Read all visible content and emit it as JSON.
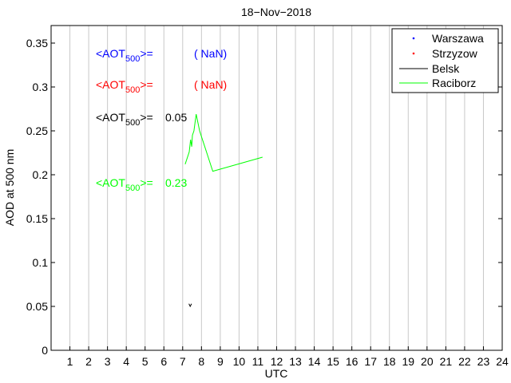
{
  "chart_data": {
    "type": "line",
    "title": "18−Nov−2018",
    "xlabel": "UTC",
    "ylabel": "AOD at 500 nm",
    "xlim": [
      0,
      24
    ],
    "ylim": [
      0,
      0.37
    ],
    "x_ticks": [
      1,
      2,
      3,
      4,
      5,
      6,
      7,
      8,
      9,
      10,
      11,
      12,
      13,
      14,
      15,
      16,
      17,
      18,
      19,
      20,
      21,
      22,
      23,
      24
    ],
    "y_ticks": [
      0,
      0.05,
      0.1,
      0.15,
      0.2,
      0.25,
      0.3,
      0.35
    ],
    "grid": "vertical",
    "legend_position": "top-right",
    "series": [
      {
        "name": "Warszawa",
        "color": "#0000ff",
        "style": "points",
        "x": [],
        "y": []
      },
      {
        "name": "Strzyzow",
        "color": "#ff0000",
        "style": "points",
        "x": [],
        "y": []
      },
      {
        "name": "Belsk",
        "color": "#000000",
        "style": "line",
        "x": [
          7.33,
          7.4,
          7.47
        ],
        "y": [
          0.053,
          0.05,
          0.053
        ]
      },
      {
        "name": "Raciborz",
        "color": "#00ff00",
        "style": "line",
        "x": [
          7.13,
          7.35,
          7.42,
          7.48,
          7.52,
          7.6,
          7.72,
          7.9,
          8.6,
          11.25
        ],
        "y": [
          0.212,
          0.226,
          0.24,
          0.232,
          0.245,
          0.25,
          0.269,
          0.25,
          0.204,
          0.22
        ]
      }
    ],
    "annotations": [
      {
        "prefix": "<AOT",
        "sub": "500",
        "suffix": ">=",
        "value": "( NaN)",
        "color": "#0000ff"
      },
      {
        "prefix": "<AOT",
        "sub": "500",
        "suffix": ">=",
        "value": "( NaN)",
        "color": "#ff0000"
      },
      {
        "prefix": "<AOT",
        "sub": "500",
        "suffix": ">=",
        "value": "0.05",
        "color": "#000000"
      },
      {
        "prefix": "<AOT",
        "sub": "500",
        "suffix": ">=",
        "value": "0.23",
        "color": "#00ff00"
      }
    ]
  }
}
